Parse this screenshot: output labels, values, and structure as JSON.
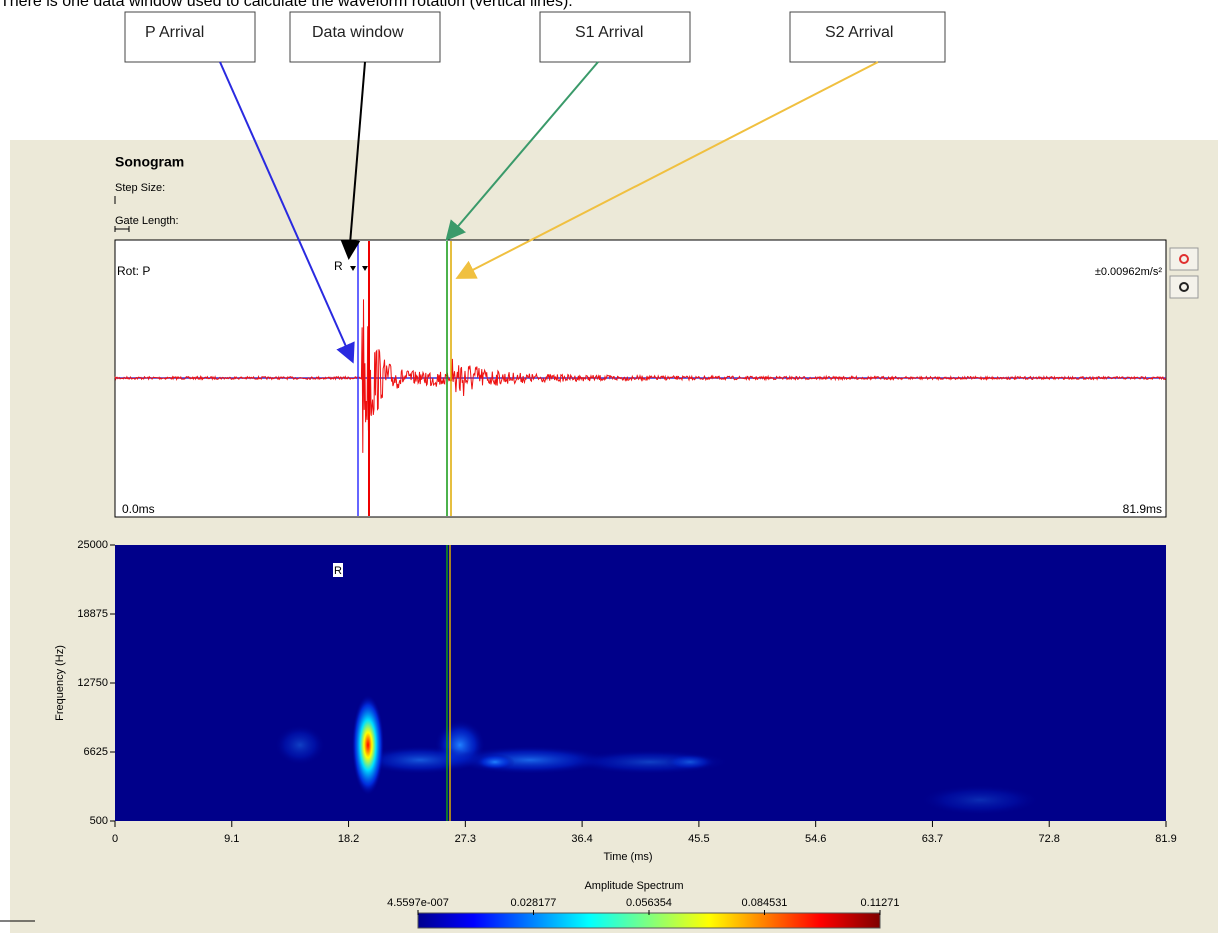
{
  "caption": "There is one data window used to calculate the waveform rotation (vertical lines).",
  "callouts": [
    "P Arrival",
    "Data window",
    "S1 Arrival",
    "S2 Arrival"
  ],
  "panel": {
    "title": "Sonogram",
    "step_size": "Step Size:",
    "gate_length": "Gate Length:"
  },
  "waveform": {
    "label": "Rot: P",
    "scale": "±0.00962m/s²",
    "marker": "R",
    "start": "0.0ms",
    "end": "81.9ms"
  },
  "sonogram": {
    "marker": "R",
    "y_label": "Frequency (Hz)",
    "y_ticks": [
      "25000",
      "18875",
      "12750",
      "6625",
      "500"
    ],
    "x_label": "Time (ms)",
    "x_ticks": [
      "0",
      "9.1",
      "18.2",
      "27.3",
      "36.4",
      "45.5",
      "54.6",
      "63.7",
      "72.8",
      "81.9"
    ]
  },
  "colorbar": {
    "title": "Amplitude Spectrum",
    "ticks": [
      "4.5597e-007",
      "0.028177",
      "0.056354",
      "0.084531",
      "0.11271"
    ]
  }
}
